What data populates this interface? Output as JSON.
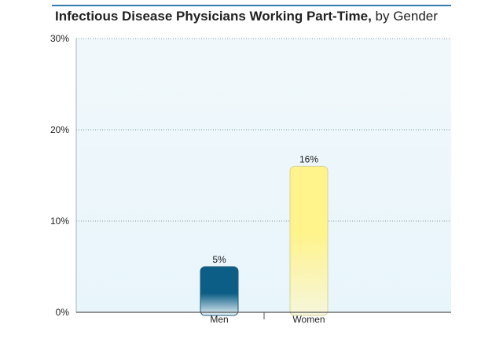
{
  "chart_data": {
    "type": "bar",
    "title": "Infectious Disease Physicians Working Part-Time,",
    "subtitle": "by Gender",
    "categories": [
      "Men",
      "Women"
    ],
    "values": [
      5,
      16
    ],
    "value_labels": [
      "5%",
      "16%"
    ],
    "ylim": [
      0,
      30
    ],
    "yticks": [
      "0%",
      "10%",
      "20%",
      "30%"
    ],
    "ytick_values": [
      0,
      10,
      20,
      30
    ],
    "grid": true,
    "colors": {
      "men_top": "#0d5e86",
      "men_bottom": "#e6f1f6",
      "women_top": "#fff38c",
      "women_bottom": "#f6f6dc",
      "plot_bg_top": "#f1f8fb",
      "plot_bg_bottom": "#e8f5fb",
      "grid": "#7a9aaa",
      "title_rule": "#2f7db3"
    }
  }
}
